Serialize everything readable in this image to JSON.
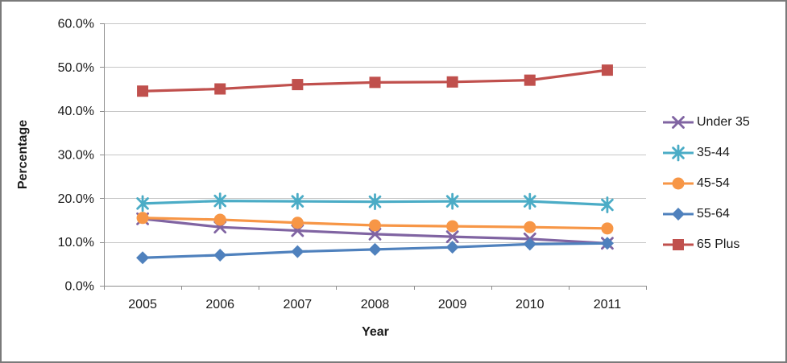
{
  "chart_data": {
    "type": "line",
    "title": "",
    "xlabel": "Year",
    "ylabel": "Percentage",
    "categories": [
      "2005",
      "2006",
      "2007",
      "2008",
      "2009",
      "2010",
      "2011"
    ],
    "series": [
      {
        "name": "Under 35",
        "marker": "x",
        "color": "#8064A2",
        "values": [
          15.3,
          13.4,
          12.6,
          11.8,
          11.2,
          10.7,
          9.7
        ]
      },
      {
        "name": "35-44",
        "marker": "asterisk",
        "color": "#4BACC6",
        "values": [
          18.8,
          19.4,
          19.3,
          19.2,
          19.3,
          19.3,
          18.5
        ]
      },
      {
        "name": "45-54",
        "marker": "circle",
        "color": "#F79646",
        "values": [
          15.5,
          15.1,
          14.4,
          13.8,
          13.6,
          13.4,
          13.1
        ]
      },
      {
        "name": "55-64",
        "marker": "diamond",
        "color": "#4F81BD",
        "values": [
          6.4,
          7.0,
          7.8,
          8.3,
          8.8,
          9.5,
          9.7
        ]
      },
      {
        "name": "65 Plus",
        "marker": "square",
        "color": "#C0504D",
        "values": [
          44.5,
          45.0,
          46.0,
          46.5,
          46.6,
          47.0,
          49.3
        ]
      }
    ],
    "ylim": [
      0,
      60
    ],
    "ytick_step": 10,
    "ytick_labels": [
      "0.0%",
      "10.0%",
      "20.0%",
      "30.0%",
      "40.0%",
      "50.0%",
      "60.0%"
    ],
    "grid": true,
    "legend_position": "right",
    "grid_color": "#C6C6C6",
    "axis_color": "#8E8E8E",
    "text_color": "#1A1A1A"
  }
}
